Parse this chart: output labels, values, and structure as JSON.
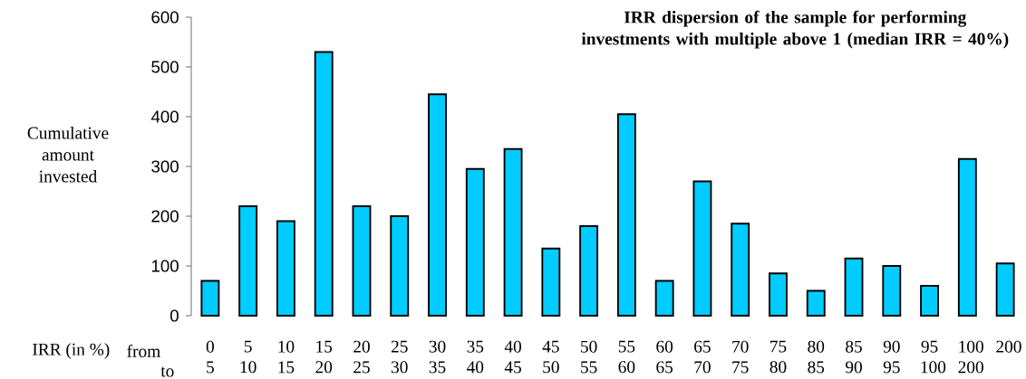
{
  "chart_data": {
    "type": "bar",
    "title": "IRR dispersion of the sample for performing investments with multiple above 1 (median IRR = 40%)",
    "xlabel": "IRR (in %)",
    "ylabel": "Cumulative amount invested",
    "annotations": [
      "from",
      "to"
    ],
    "categories": [
      "0 5",
      "5 10",
      "10 15",
      "15 20",
      "20 25",
      "25 30",
      "30 35",
      "35 40",
      "40 45",
      "45 50",
      "50 55",
      "55 60",
      "60 65",
      "65 70",
      "70 75",
      "75 80",
      "80 85",
      "85 90",
      "90 95",
      "95 100",
      "100 200",
      "200"
    ],
    "values": [
      70,
      220,
      190,
      530,
      220,
      200,
      445,
      295,
      335,
      135,
      180,
      405,
      70,
      270,
      185,
      85,
      50,
      115,
      100,
      60,
      315,
      105
    ],
    "color": "#00ccff",
    "ylim": [
      0,
      600
    ],
    "yticks": [
      0,
      100,
      200,
      300,
      400,
      500,
      600
    ]
  }
}
